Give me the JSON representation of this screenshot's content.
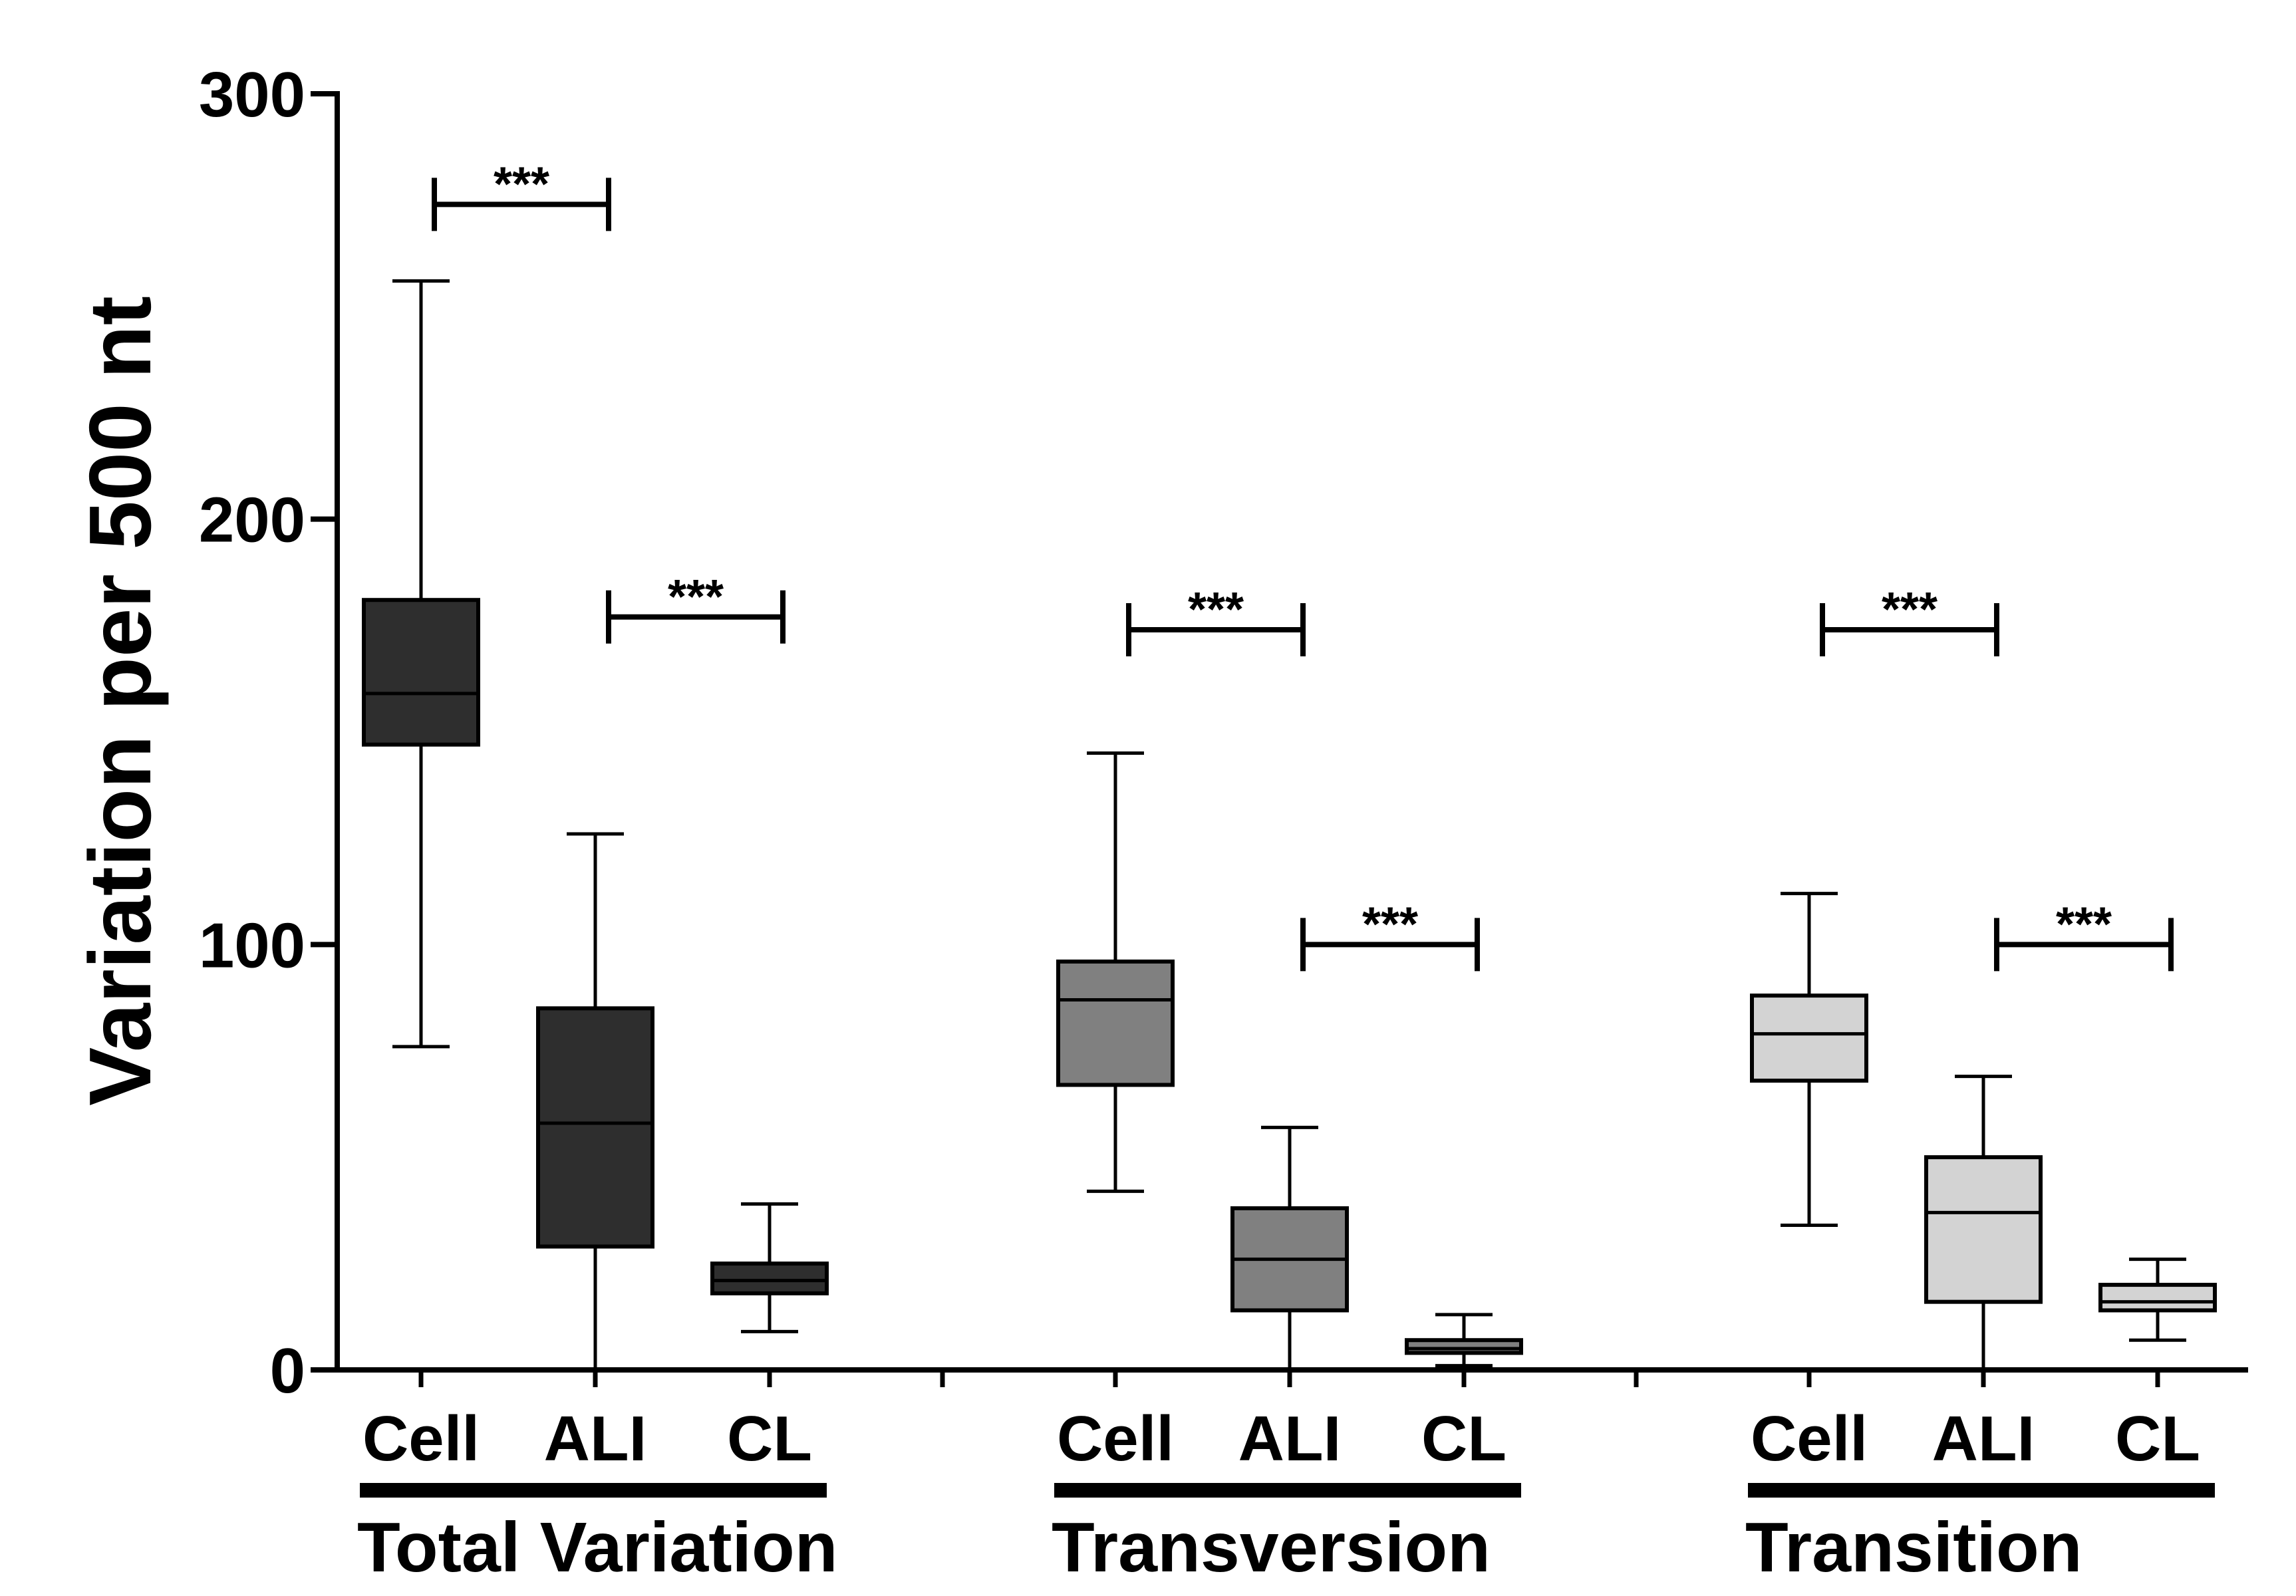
{
  "chart_data": {
    "type": "boxplot",
    "ylabel": "Variation per 500 nt",
    "ylim": [
      0,
      300
    ],
    "yticks": [
      0,
      100,
      200,
      300
    ],
    "grid": false,
    "groups": [
      {
        "name": "Total Variation",
        "color": "#2e2e2e",
        "boxes": [
          {
            "label": "Cell",
            "min": 76,
            "q1": 147,
            "median": 159,
            "q3": 181,
            "max": 256
          },
          {
            "label": "ALI",
            "min": 0,
            "q1": 29,
            "median": 58,
            "q3": 85,
            "max": 126
          },
          {
            "label": "CL",
            "min": 9,
            "q1": 18,
            "median": 21,
            "q3": 25,
            "max": 39
          }
        ],
        "comparisons": [
          {
            "from": 0,
            "to": 1,
            "y": 274,
            "label": "***"
          },
          {
            "from": 1,
            "to": 2,
            "y": 177,
            "label": "***"
          }
        ]
      },
      {
        "name": "Transversion",
        "color": "#808080",
        "boxes": [
          {
            "label": "Cell",
            "min": 42,
            "q1": 67,
            "median": 87,
            "q3": 96,
            "max": 145
          },
          {
            "label": "ALI",
            "min": 0,
            "q1": 14,
            "median": 26,
            "q3": 38,
            "max": 57
          },
          {
            "label": "CL",
            "min": 1,
            "q1": 4,
            "median": 5,
            "q3": 7,
            "max": 13
          }
        ],
        "comparisons": [
          {
            "from": 0,
            "to": 1,
            "y": 174,
            "label": "***"
          },
          {
            "from": 1,
            "to": 2,
            "y": 100,
            "label": "***"
          }
        ]
      },
      {
        "name": "Transition",
        "color": "#d3d3d3",
        "boxes": [
          {
            "label": "Cell",
            "min": 34,
            "q1": 68,
            "median": 79,
            "q3": 88,
            "max": 112
          },
          {
            "label": "ALI",
            "min": 0,
            "q1": 16,
            "median": 37,
            "q3": 50,
            "max": 69
          },
          {
            "label": "CL",
            "min": 7,
            "q1": 14,
            "median": 16,
            "q3": 20,
            "max": 26
          }
        ],
        "comparisons": [
          {
            "from": 0,
            "to": 1,
            "y": 174,
            "label": "***"
          },
          {
            "from": 1,
            "to": 2,
            "y": 100,
            "label": "***"
          }
        ]
      }
    ]
  }
}
